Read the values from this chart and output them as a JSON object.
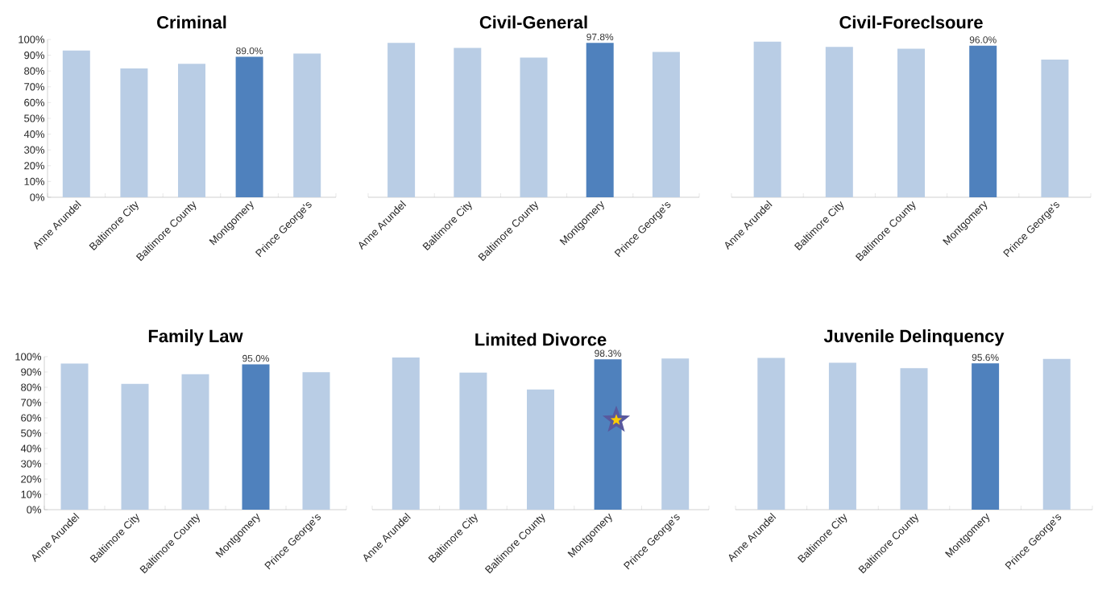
{
  "chart_data": [
    {
      "type": "bar",
      "title": "Criminal",
      "categories": [
        "Anne Arundel",
        "Baltimore City",
        "Baltimore County",
        "Montgomery",
        "Prince George's"
      ],
      "values": [
        93.0,
        81.6,
        84.6,
        89.0,
        91.1
      ],
      "colors": [
        "#b9cde5",
        "#b9cde5",
        "#b9cde5",
        "#4f81bd",
        "#b9cde5"
      ],
      "value_labels": [
        null,
        null,
        null,
        "89.0%",
        null
      ],
      "ylim": [
        0,
        100
      ],
      "yticks": [
        {
          "value": 0,
          "label": "0%"
        },
        {
          "value": 10,
          "label": "10%"
        },
        {
          "value": 20,
          "label": "20%"
        },
        {
          "value": 30,
          "label": "30%"
        },
        {
          "value": 40,
          "label": "40%"
        },
        {
          "value": 50,
          "label": "50%"
        },
        {
          "value": 60,
          "label": "60%"
        },
        {
          "value": 70,
          "label": "70%"
        },
        {
          "value": 80,
          "label": "80%"
        },
        {
          "value": 90,
          "label": "90%"
        },
        {
          "value": 100,
          "label": "100%"
        }
      ]
    },
    {
      "type": "bar",
      "title": "Civil-General",
      "categories": [
        "Anne Arundel",
        "Baltimore City",
        "Baltimore County",
        "Montgomery",
        "Prince George's"
      ],
      "values": [
        97.8,
        94.7,
        88.5,
        97.8,
        92.1
      ],
      "colors": [
        "#b9cde5",
        "#b9cde5",
        "#b9cde5",
        "#4f81bd",
        "#b9cde5"
      ],
      "value_labels": [
        null,
        null,
        null,
        "97.8%",
        null
      ],
      "ylim": [
        0,
        100
      ],
      "tick_labels": "x"
    },
    {
      "type": "bar",
      "title": "Civil-Foreclsoure",
      "categories": [
        "Anne Arundel",
        "Baltimore City",
        "Baltimore County",
        "Montgomery",
        "Prince George's"
      ],
      "values": [
        98.6,
        95.3,
        94.1,
        96.0,
        87.2
      ],
      "colors": [
        "#b9cde5",
        "#b9cde5",
        "#b9cde5",
        "#4f81bd",
        "#b9cde5"
      ],
      "value_labels": [
        null,
        null,
        null,
        "96.0%",
        null
      ],
      "ylim": [
        0,
        100
      ],
      "tick_labels": "x"
    },
    {
      "type": "bar",
      "title": "Family Law",
      "categories": [
        "Anne Arundel",
        "Baltimore City",
        "Baltimore County",
        "Montgomery",
        "Prince George's"
      ],
      "values": [
        95.5,
        82.3,
        88.5,
        95.0,
        89.9
      ],
      "colors": [
        "#b9cde5",
        "#b9cde5",
        "#b9cde5",
        "#4f81bd",
        "#b9cde5"
      ],
      "value_labels": [
        null,
        null,
        null,
        "95.0%",
        null
      ],
      "ylim": [
        0,
        100
      ],
      "yticks": [
        {
          "value": 0,
          "label": "0%"
        },
        {
          "value": 10,
          "label": "10%"
        },
        {
          "value": 20,
          "label": "20%"
        },
        {
          "value": 30,
          "label": "30%"
        },
        {
          "value": 40,
          "label": "40%"
        },
        {
          "value": 50,
          "label": "50%"
        },
        {
          "value": 60,
          "label": "60%"
        },
        {
          "value": 70,
          "label": "70%"
        },
        {
          "value": 80,
          "label": "80%"
        },
        {
          "value": 90,
          "label": "90%"
        },
        {
          "value": 100,
          "label": "100%"
        }
      ]
    },
    {
      "type": "bar",
      "title": "Limited Divorce",
      "categories": [
        "Anne Arundel",
        "Baltimore City",
        "Baltimore County",
        "Montgomery",
        "Prince George's"
      ],
      "values": [
        99.5,
        89.6,
        78.5,
        98.3,
        98.8
      ],
      "colors": [
        "#b9cde5",
        "#b9cde5",
        "#b9cde5",
        "#4f81bd",
        "#b9cde5"
      ],
      "value_labels": [
        null,
        null,
        null,
        "98.3%",
        null
      ],
      "ylim": [
        0,
        100
      ],
      "tick_labels": "x"
    },
    {
      "type": "bar",
      "title": "Juvenile Delinquency",
      "categories": [
        "Anne Arundel",
        "Baltimore City",
        "Baltimore County",
        "Montgomery",
        "Prince George's"
      ],
      "values": [
        99.2,
        96.1,
        92.5,
        95.6,
        98.5
      ],
      "colors": [
        "#b9cde5",
        "#b9cde5",
        "#b9cde5",
        "#4f81bd",
        "#b9cde5"
      ],
      "value_labels": [
        null,
        null,
        null,
        "95.6%",
        null
      ],
      "ylim": [
        0,
        100
      ],
      "tick_labels": "x"
    }
  ]
}
